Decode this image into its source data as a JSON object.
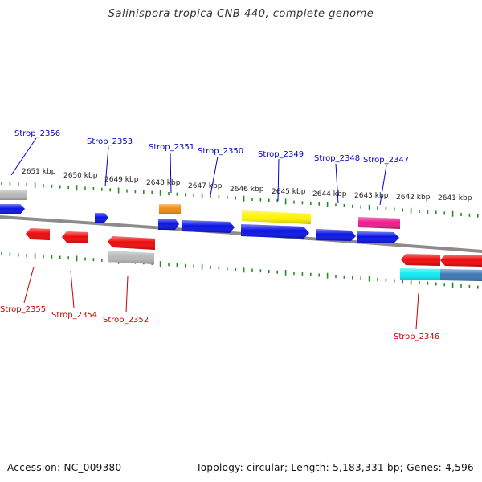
{
  "title": "Salinispora tropica CNB-440, complete genome",
  "footer": {
    "accession": "Accession: NC_009380",
    "summary": "Topology: circular; Length: 5,183,331 bp; Genes: 4,596"
  },
  "colors": {
    "upper_label": "#0000cc",
    "lower_label": "#cc0000",
    "tick": "#2a8a2a",
    "backbone": "#8c8c8c",
    "gene_blue": "#0a14e6",
    "gene_red": "#ee0a0a",
    "gene_gray": "#b8b8b8",
    "gene_orange": "#f08c10",
    "gene_yellow": "#fff20a",
    "gene_pink": "#ee1a8c",
    "gene_cyan": "#10ecf4",
    "gene_steel": "#3c78b4"
  },
  "kbp_labels": [
    "2651 kbp",
    "2650 kbp",
    "2649 kbp",
    "2648 kbp",
    "2647 kbp",
    "2646 kbp",
    "2645 kbp",
    "2644 kbp",
    "2643 kbp",
    "2642 kbp",
    "2641 kbp"
  ],
  "upper_genes": [
    "Strop_2356",
    "Strop_2353",
    "Strop_2351",
    "Strop_2350",
    "Strop_2349",
    "Strop_2348",
    "Strop_2347"
  ],
  "lower_genes": [
    "Strop_2355",
    "Strop_2354",
    "Strop_2352",
    "Strop_2346"
  ]
}
